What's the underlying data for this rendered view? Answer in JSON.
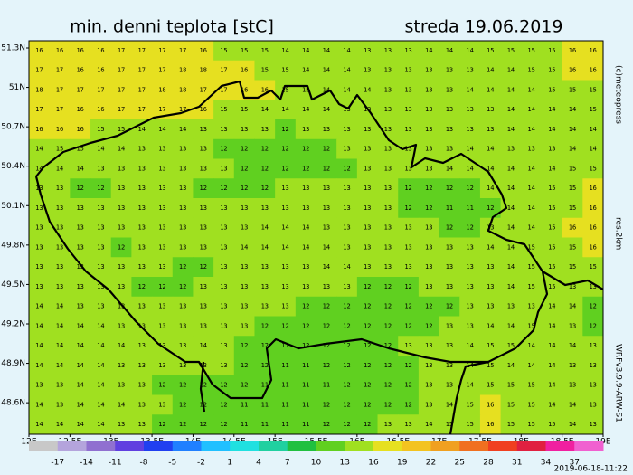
{
  "map": {
    "title": "min. denni teplota [stC]",
    "date": "streda 19.06.2019",
    "credit": "(c)meteopress",
    "resolution": "res.2km",
    "model": "WRFv3.9.9-ARW-S1",
    "timestamp": "2019-06-18-11:22",
    "xlim": [
      12,
      19
    ],
    "ylim": [
      48.36,
      51.355
    ],
    "xticks": [
      {
        "value": 12,
        "label": "12E"
      },
      {
        "value": 12.5,
        "label": "12.5E"
      },
      {
        "value": 13,
        "label": "13E"
      },
      {
        "value": 13.5,
        "label": "13.5E"
      },
      {
        "value": 14,
        "label": "14E"
      },
      {
        "value": 14.5,
        "label": "14.5E"
      },
      {
        "value": 15,
        "label": "15E"
      },
      {
        "value": 15.5,
        "label": "15.5E"
      },
      {
        "value": 16,
        "label": "16E"
      },
      {
        "value": 16.5,
        "label": "16.5E"
      },
      {
        "value": 17,
        "label": "17E"
      },
      {
        "value": 17.5,
        "label": "17.5E"
      },
      {
        "value": 18,
        "label": "18E"
      },
      {
        "value": 18.5,
        "label": "18.5E"
      },
      {
        "value": 19,
        "label": "19E"
      }
    ],
    "yticks": [
      {
        "value": 51.3,
        "label": "51.3N"
      },
      {
        "value": 51,
        "label": "51N"
      },
      {
        "value": 50.7,
        "label": "50.7N"
      },
      {
        "value": 50.4,
        "label": "50.4N"
      },
      {
        "value": 50.1,
        "label": "50.1N"
      },
      {
        "value": 49.8,
        "label": "49.8N"
      },
      {
        "value": 49.5,
        "label": "49.5N"
      },
      {
        "value": 49.2,
        "label": "49.2N"
      },
      {
        "value": 48.9,
        "label": "48.9N"
      },
      {
        "value": 48.6,
        "label": "48.6N"
      }
    ],
    "colorbar": {
      "lim": [
        -20,
        40
      ],
      "ticks": [
        -17,
        -14,
        -11,
        -8,
        -5,
        -2,
        1,
        4,
        7,
        10,
        13,
        16,
        19,
        22,
        25,
        28,
        31,
        34,
        37
      ],
      "colors": [
        "#c8c8c8",
        "#b4a4dc",
        "#9070d0",
        "#6040e0",
        "#2040f0",
        "#2080ff",
        "#20c0ff",
        "#20e0e0",
        "#20d0a0",
        "#20c040",
        "#60d020",
        "#a0e020",
        "#e6e020",
        "#f3c320",
        "#f0a020",
        "#f07020",
        "#f04020",
        "#e02040",
        "#f020a0",
        "#f060d0"
      ]
    },
    "grid": [
      [
        16,
        16,
        16,
        16,
        17,
        17,
        17,
        17,
        16,
        15,
        15,
        15,
        14,
        14,
        14,
        14,
        13,
        13,
        13,
        14,
        14,
        14,
        15,
        15,
        15,
        15,
        16,
        16
      ],
      [
        17,
        17,
        16,
        16,
        17,
        17,
        17,
        18,
        18,
        17,
        16,
        15,
        15,
        14,
        14,
        14,
        13,
        13,
        13,
        13,
        13,
        13,
        14,
        14,
        15,
        15,
        16,
        16
      ],
      [
        18,
        17,
        17,
        17,
        17,
        17,
        18,
        18,
        17,
        17,
        16,
        16,
        15,
        15,
        14,
        14,
        14,
        13,
        13,
        13,
        13,
        14,
        14,
        14,
        14,
        15,
        15,
        15
      ],
      [
        17,
        17,
        16,
        16,
        17,
        17,
        17,
        17,
        16,
        15,
        15,
        14,
        14,
        14,
        14,
        13,
        13,
        13,
        13,
        13,
        13,
        13,
        13,
        14,
        14,
        14,
        14,
        15
      ],
      [
        16,
        16,
        16,
        15,
        15,
        14,
        14,
        14,
        13,
        13,
        13,
        13,
        12,
        13,
        13,
        13,
        13,
        13,
        13,
        13,
        13,
        13,
        13,
        14,
        14,
        14,
        14,
        14
      ],
      [
        14,
        15,
        15,
        14,
        14,
        13,
        13,
        13,
        13,
        12,
        12,
        12,
        12,
        12,
        12,
        13,
        13,
        13,
        13,
        13,
        13,
        14,
        14,
        13,
        13,
        13,
        14,
        14
      ],
      [
        14,
        14,
        14,
        13,
        13,
        13,
        13,
        13,
        13,
        13,
        12,
        12,
        12,
        12,
        12,
        12,
        13,
        13,
        13,
        13,
        14,
        14,
        14,
        14,
        14,
        14,
        15,
        15
      ],
      [
        13,
        13,
        12,
        12,
        13,
        13,
        13,
        13,
        12,
        12,
        12,
        12,
        13,
        13,
        13,
        13,
        13,
        13,
        12,
        12,
        12,
        12,
        14,
        14,
        14,
        15,
        15,
        16
      ],
      [
        13,
        13,
        13,
        13,
        13,
        13,
        13,
        13,
        13,
        13,
        13,
        13,
        13,
        13,
        13,
        13,
        13,
        13,
        12,
        12,
        11,
        11,
        12,
        14,
        14,
        15,
        15,
        16
      ],
      [
        13,
        13,
        13,
        13,
        13,
        13,
        13,
        13,
        13,
        13,
        13,
        14,
        14,
        14,
        13,
        13,
        13,
        13,
        13,
        13,
        12,
        12,
        13,
        14,
        14,
        15,
        16,
        16
      ],
      [
        13,
        13,
        13,
        13,
        12,
        13,
        13,
        13,
        13,
        13,
        14,
        14,
        14,
        14,
        14,
        13,
        13,
        13,
        13,
        13,
        13,
        13,
        14,
        14,
        15,
        15,
        15,
        16
      ],
      [
        13,
        13,
        13,
        13,
        13,
        13,
        13,
        12,
        12,
        13,
        13,
        13,
        13,
        13,
        14,
        14,
        13,
        13,
        13,
        13,
        13,
        13,
        13,
        14,
        15,
        15,
        15,
        15
      ],
      [
        13,
        13,
        13,
        13,
        13,
        12,
        12,
        12,
        13,
        13,
        13,
        13,
        13,
        13,
        13,
        13,
        12,
        12,
        12,
        13,
        13,
        13,
        13,
        14,
        15,
        15,
        13,
        13
      ],
      [
        14,
        14,
        13,
        13,
        13,
        13,
        13,
        13,
        13,
        13,
        13,
        13,
        13,
        12,
        12,
        12,
        12,
        12,
        12,
        12,
        12,
        13,
        13,
        13,
        13,
        14,
        14,
        12
      ],
      [
        14,
        14,
        14,
        14,
        13,
        13,
        13,
        13,
        13,
        13,
        13,
        12,
        12,
        12,
        12,
        12,
        12,
        12,
        12,
        12,
        13,
        13,
        14,
        14,
        15,
        14,
        13,
        12
      ],
      [
        14,
        14,
        14,
        14,
        14,
        13,
        13,
        13,
        14,
        13,
        12,
        12,
        11,
        12,
        12,
        12,
        12,
        12,
        13,
        13,
        13,
        14,
        15,
        15,
        14,
        14,
        14,
        13
      ],
      [
        14,
        14,
        14,
        14,
        13,
        13,
        13,
        13,
        13,
        13,
        12,
        12,
        11,
        11,
        12,
        12,
        12,
        12,
        12,
        13,
        13,
        14,
        15,
        14,
        14,
        14,
        13,
        13
      ],
      [
        13,
        13,
        14,
        14,
        13,
        13,
        12,
        12,
        12,
        12,
        12,
        11,
        11,
        11,
        11,
        12,
        12,
        12,
        12,
        13,
        13,
        14,
        15,
        15,
        15,
        14,
        13,
        13
      ],
      [
        14,
        13,
        14,
        14,
        14,
        13,
        13,
        12,
        12,
        12,
        11,
        11,
        11,
        11,
        12,
        12,
        12,
        12,
        12,
        13,
        14,
        15,
        16,
        15,
        15,
        14,
        14,
        13
      ],
      [
        14,
        14,
        14,
        14,
        13,
        13,
        12,
        12,
        12,
        12,
        11,
        11,
        11,
        11,
        12,
        12,
        12,
        13,
        13,
        14,
        15,
        15,
        16,
        15,
        15,
        15,
        14,
        13
      ]
    ]
  }
}
